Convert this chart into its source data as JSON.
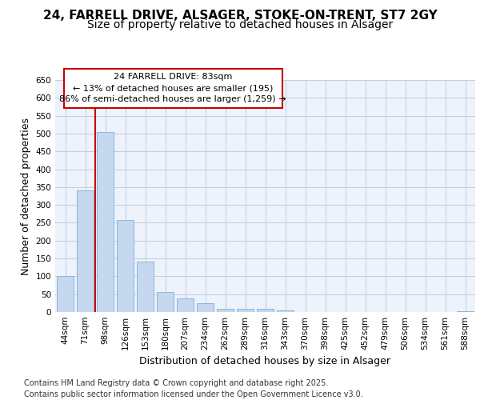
{
  "title_line1": "24, FARRELL DRIVE, ALSAGER, STOKE-ON-TRENT, ST7 2GY",
  "title_line2": "Size of property relative to detached houses in Alsager",
  "xlabel": "Distribution of detached houses by size in Alsager",
  "ylabel": "Number of detached properties",
  "categories": [
    "44sqm",
    "71sqm",
    "98sqm",
    "126sqm",
    "153sqm",
    "180sqm",
    "207sqm",
    "234sqm",
    "262sqm",
    "289sqm",
    "316sqm",
    "343sqm",
    "370sqm",
    "398sqm",
    "425sqm",
    "452sqm",
    "479sqm",
    "506sqm",
    "534sqm",
    "561sqm",
    "588sqm"
  ],
  "values": [
    100,
    340,
    505,
    257,
    142,
    55,
    38,
    24,
    8,
    10,
    10,
    5,
    0,
    0,
    0,
    0,
    0,
    0,
    0,
    0,
    2
  ],
  "bar_color": "#c5d8f0",
  "bar_edge_color": "#7fafd4",
  "ylim": [
    0,
    650
  ],
  "yticks": [
    0,
    50,
    100,
    150,
    200,
    250,
    300,
    350,
    400,
    450,
    500,
    550,
    600,
    650
  ],
  "vline_x": 1.5,
  "vline_color": "#cc0000",
  "annotation_line1": "24 FARRELL DRIVE: 83sqm",
  "annotation_line2": "← 13% of detached houses are smaller (195)",
  "annotation_line3": "86% of semi-detached houses are larger (1,259) →",
  "annotation_box_edge": "#cc0000",
  "footnote": "Contains HM Land Registry data © Crown copyright and database right 2025.\nContains public sector information licensed under the Open Government Licence v3.0.",
  "bg_color": "#edf2fb",
  "grid_color": "#c0cce0",
  "title_fontsize": 11,
  "subtitle_fontsize": 10,
  "axis_label_fontsize": 9,
  "tick_fontsize": 7.5,
  "annotation_fontsize": 8,
  "footnote_fontsize": 7
}
